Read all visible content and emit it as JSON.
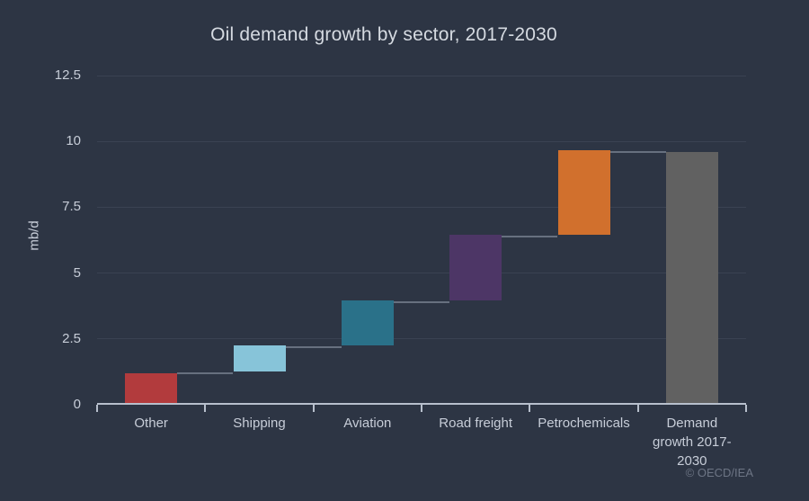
{
  "header": {
    "title": "Oil demand growth by sector, 2017-2030"
  },
  "footer": {
    "copyright": "© OECD/IEA"
  },
  "chart_data": {
    "type": "bar",
    "subtype": "waterfall",
    "title": "Oil demand growth by sector, 2017-2030",
    "xlabel": "",
    "ylabel": "mb/d",
    "categories": [
      "Other",
      "Shipping",
      "Aviation",
      "Road freight",
      "Petrochemicals",
      "Demand growth 2017-2030"
    ],
    "values": [
      1.2,
      1.0,
      1.7,
      2.5,
      3.2,
      9.6
    ],
    "starts": [
      0,
      1.2,
      2.2,
      3.9,
      6.4,
      0
    ],
    "ends": [
      1.2,
      2.2,
      3.9,
      6.4,
      9.6,
      9.6
    ],
    "is_total": [
      false,
      false,
      false,
      false,
      false,
      true
    ],
    "bar_colors": [
      "#b23b3d",
      "#87c4d9",
      "#2a7189",
      "#4d3666",
      "#d1702d",
      "#616161"
    ],
    "yticks": [
      0,
      2.5,
      5,
      7.5,
      10,
      12.5
    ],
    "ylim": [
      0,
      12.5
    ],
    "grid": true,
    "legend": false,
    "annotations": [
      "© OECD/IEA"
    ]
  },
  "colors": {
    "background": "#2d3544",
    "title_text": "#d5dae1",
    "axis_text": "#c7cdd8",
    "grid_line": "#3a4252",
    "axis_line": "#b7bfcc",
    "connector_line": "rgba(175,185,200,0.45)",
    "muted_text": "#6d7585"
  }
}
